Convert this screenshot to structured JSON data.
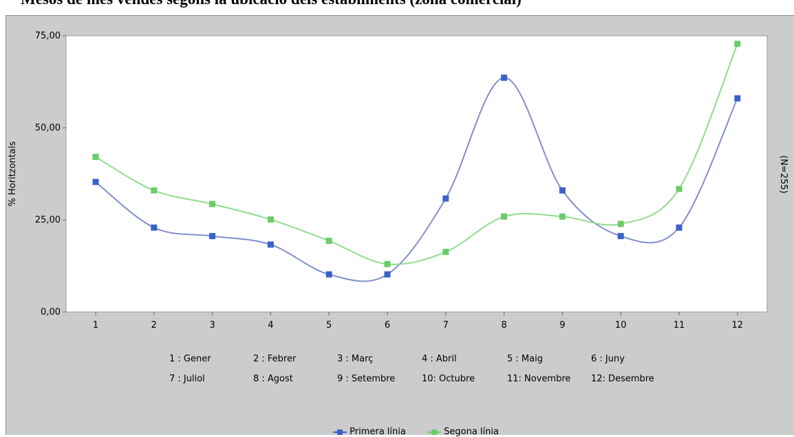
{
  "title": "Mesos de més vendes segons la ubicació dels establiments (zona comercial)",
  "side_note": "(N=255)",
  "month_key": [
    {
      "num": "1 :",
      "name": "Gener"
    },
    {
      "num": "2 :",
      "name": "Febrer"
    },
    {
      "num": "3 :",
      "name": "Març"
    },
    {
      "num": "4 :",
      "name": "Abril"
    },
    {
      "num": "5 :",
      "name": "Maig"
    },
    {
      "num": "6 :",
      "name": "Juny"
    },
    {
      "num": "7 :",
      "name": "Juliol"
    },
    {
      "num": "8 :",
      "name": "Agost"
    },
    {
      "num": "9 :",
      "name": "Setembre"
    },
    {
      "num": "10:",
      "name": "Octubre"
    },
    {
      "num": "11:",
      "name": "Novembre"
    },
    {
      "num": "12:",
      "name": "Desembre"
    }
  ],
  "chart_data": {
    "type": "line",
    "title": "Mesos de més vendes segons la ubicació dels establiments (zona comercial)",
    "xlabel": "",
    "ylabel": "% Horitzontals",
    "categories": [
      "1",
      "2",
      "3",
      "4",
      "5",
      "6",
      "7",
      "8",
      "9",
      "10",
      "11",
      "12"
    ],
    "ylim": [
      0,
      75
    ],
    "yticks": [
      "0,00",
      "25,00",
      "50,00",
      "75,00"
    ],
    "ytick_values": [
      0,
      25,
      50,
      75
    ],
    "grid": false,
    "legend_position": "bottom",
    "smooth": true,
    "series": [
      {
        "name": "Primera línia",
        "color": "#3a62c8",
        "line_color": "#7f8fcc",
        "values": [
          35.3,
          22.9,
          20.6,
          18.3,
          10.2,
          10.2,
          30.8,
          63.6,
          33.0,
          20.6,
          22.9,
          58.0
        ]
      },
      {
        "name": "Segona línia",
        "color": "#6ccc68",
        "line_color": "#8fdc8c",
        "values": [
          42.1,
          33.0,
          29.3,
          25.1,
          19.3,
          13.0,
          16.3,
          25.9,
          25.9,
          23.9,
          33.4,
          72.8
        ]
      }
    ]
  }
}
